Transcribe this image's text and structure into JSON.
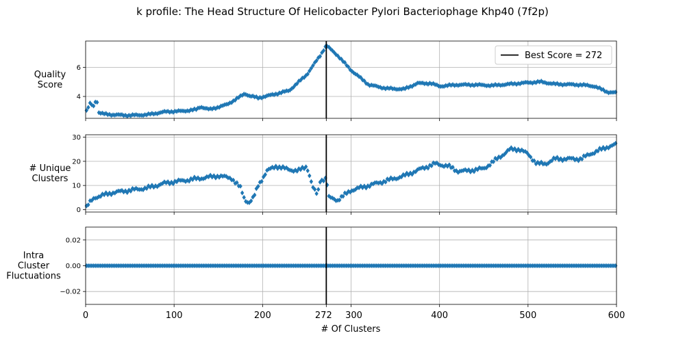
{
  "figure": {
    "title": "k profile: The Head Structure Of Helicobacter Pylori Bacteriophage Khp40 (7f2p)"
  },
  "chart_data": {
    "type": "scatter",
    "title": "k profile: The Head Structure Of Helicobacter Pylori Bacteriophage Khp40 (7f2p)",
    "xlabel": "# Of Clusters",
    "xlim": [
      0,
      600
    ],
    "x_ticks": [
      "0",
      "100",
      "200",
      "272",
      "300",
      "400",
      "500",
      "600"
    ],
    "best_k": 272,
    "legend": {
      "label": "Best Score = 272",
      "placement": "upper right"
    },
    "marker": "diamond",
    "series_color": "#1f77b4",
    "vline_color": "#000000",
    "grid": true,
    "panels": [
      {
        "ylabel": [
          "Quality",
          "Score"
        ],
        "ylim": [
          2.5,
          7.8
        ],
        "y_ticks": [
          4,
          6
        ],
        "y_tick_labels": [
          "4",
          "6"
        ],
        "anchors": [
          [
            1,
            3.0
          ],
          [
            5,
            3.5
          ],
          [
            10,
            3.3
          ],
          [
            12,
            4.0
          ],
          [
            15,
            2.9
          ],
          [
            20,
            2.8
          ],
          [
            30,
            2.75
          ],
          [
            50,
            2.7
          ],
          [
            70,
            2.75
          ],
          [
            90,
            2.95
          ],
          [
            110,
            3.0
          ],
          [
            125,
            3.1
          ],
          [
            130,
            3.3
          ],
          [
            140,
            3.1
          ],
          [
            160,
            3.45
          ],
          [
            175,
            4.0
          ],
          [
            180,
            4.2
          ],
          [
            185,
            4.05
          ],
          [
            195,
            3.9
          ],
          [
            210,
            4.1
          ],
          [
            230,
            4.4
          ],
          [
            250,
            5.5
          ],
          [
            265,
            6.8
          ],
          [
            272,
            7.5
          ],
          [
            285,
            6.8
          ],
          [
            300,
            5.8
          ],
          [
            320,
            4.8
          ],
          [
            340,
            4.55
          ],
          [
            360,
            4.5
          ],
          [
            375,
            4.9
          ],
          [
            390,
            4.9
          ],
          [
            400,
            4.7
          ],
          [
            420,
            4.8
          ],
          [
            440,
            4.8
          ],
          [
            460,
            4.75
          ],
          [
            480,
            4.85
          ],
          [
            500,
            4.95
          ],
          [
            515,
            5.0
          ],
          [
            530,
            4.85
          ],
          [
            560,
            4.8
          ],
          [
            575,
            4.7
          ],
          [
            590,
            4.3
          ],
          [
            600,
            4.25
          ]
        ]
      },
      {
        "ylabel": [
          "# Unique",
          "Clusters"
        ],
        "ylim": [
          -1,
          31
        ],
        "y_ticks": [
          0,
          10,
          20,
          30
        ],
        "y_tick_labels": [
          "0",
          "10",
          "20",
          "30"
        ],
        "anchors": [
          [
            1,
            1
          ],
          [
            5,
            3
          ],
          [
            10,
            5
          ],
          [
            20,
            6
          ],
          [
            30,
            7
          ],
          [
            50,
            8
          ],
          [
            70,
            9
          ],
          [
            90,
            11
          ],
          [
            110,
            12
          ],
          [
            130,
            13
          ],
          [
            150,
            14
          ],
          [
            165,
            13
          ],
          [
            175,
            9
          ],
          [
            180,
            4
          ],
          [
            185,
            3
          ],
          [
            190,
            5
          ],
          [
            195,
            10
          ],
          [
            205,
            16
          ],
          [
            215,
            18
          ],
          [
            225,
            17
          ],
          [
            240,
            16
          ],
          [
            250,
            18
          ],
          [
            257,
            9
          ],
          [
            262,
            6
          ],
          [
            265,
            12
          ],
          [
            272,
            13
          ],
          [
            275,
            5
          ],
          [
            285,
            4
          ],
          [
            300,
            8
          ],
          [
            320,
            10
          ],
          [
            340,
            12
          ],
          [
            360,
            14
          ],
          [
            380,
            17
          ],
          [
            395,
            19
          ],
          [
            410,
            18
          ],
          [
            420,
            16
          ],
          [
            430,
            16
          ],
          [
            450,
            17
          ],
          [
            465,
            21
          ],
          [
            480,
            25
          ],
          [
            490,
            25
          ],
          [
            500,
            23
          ],
          [
            510,
            19
          ],
          [
            520,
            19
          ],
          [
            530,
            21
          ],
          [
            560,
            21
          ],
          [
            570,
            23
          ],
          [
            590,
            26
          ],
          [
            600,
            27
          ]
        ]
      },
      {
        "ylabel": [
          "Intra",
          "Cluster",
          "Fluctuations"
        ],
        "ylim": [
          -0.03,
          0.03
        ],
        "y_ticks": [
          -0.02,
          0,
          0.02
        ],
        "y_tick_labels": [
          "−0.02",
          "0.00",
          "0.02"
        ],
        "anchors": [
          [
            1,
            0
          ],
          [
            600,
            0
          ]
        ]
      }
    ]
  }
}
